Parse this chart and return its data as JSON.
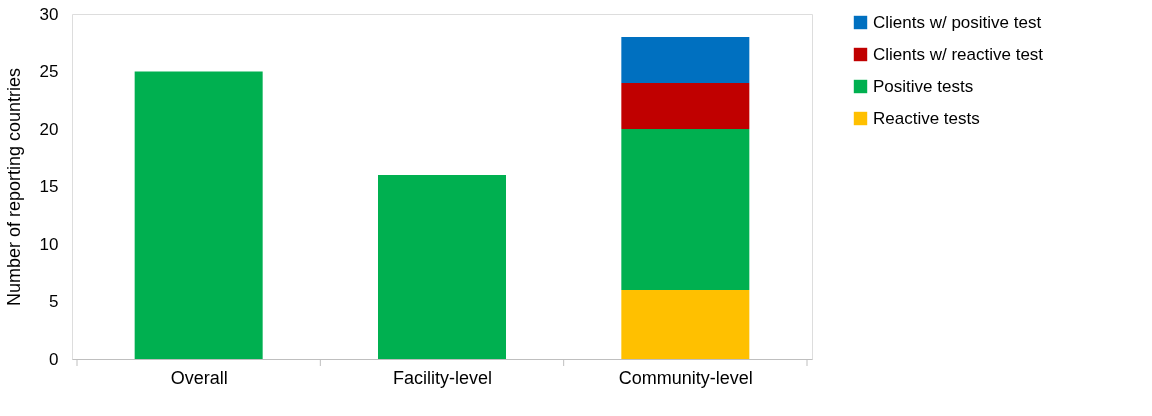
{
  "chart_data": {
    "type": "bar",
    "stacked": true,
    "ylabel": "Number of reporting countries",
    "categories": [
      "Overall",
      "Facility-level",
      "Community-level"
    ],
    "series": [
      {
        "name": "Reactive tests",
        "color": "#ffc000",
        "values": [
          null,
          null,
          6
        ]
      },
      {
        "name": "Positive tests",
        "color": "#00b050",
        "values": [
          25,
          16,
          14
        ]
      },
      {
        "name": "Clients w/ reactive test",
        "color": "#c00000",
        "values": [
          null,
          null,
          4
        ]
      },
      {
        "name": "Clients w/ positive test",
        "color": "#0070c0",
        "values": [
          null,
          null,
          4
        ]
      }
    ],
    "ylim": [
      0,
      30
    ],
    "yticks": [
      0,
      5,
      10,
      15,
      20,
      25,
      30
    ],
    "grid": false,
    "legend": "right"
  }
}
